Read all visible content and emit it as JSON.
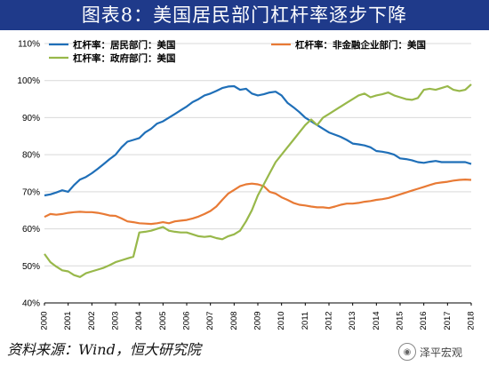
{
  "title": "图表8：美国居民部门杠杆率逐步下降",
  "source": "资料来源：Wind，恒大研究院",
  "watermark": "泽平宏观",
  "colors": {
    "household": "#1f6fb8",
    "nonfin": "#e87a35",
    "gov": "#98b84a"
  },
  "chart_data": {
    "type": "line",
    "title": "图表8：美国居民部门杠杆率逐步下降",
    "xlabel": "",
    "ylabel": "",
    "ylim": [
      40,
      110
    ],
    "y_ticks": [
      "40%",
      "50%",
      "60%",
      "70%",
      "80%",
      "90%",
      "100%",
      "110%"
    ],
    "x_ticks": [
      "2000",
      "2001",
      "2002",
      "2003",
      "2004",
      "2005",
      "2006",
      "2007",
      "2008",
      "2009",
      "2010",
      "2011",
      "2012",
      "2013",
      "2014",
      "2015",
      "2016",
      "2017",
      "2018"
    ],
    "grid": true,
    "legend": "top",
    "x": [
      2000.0,
      2000.25,
      2000.5,
      2000.75,
      2001.0,
      2001.25,
      2001.5,
      2001.75,
      2002.0,
      2002.25,
      2002.5,
      2002.75,
      2003.0,
      2003.25,
      2003.5,
      2003.75,
      2004.0,
      2004.25,
      2004.5,
      2004.75,
      2005.0,
      2005.25,
      2005.5,
      2005.75,
      2006.0,
      2006.25,
      2006.5,
      2006.75,
      2007.0,
      2007.25,
      2007.5,
      2007.75,
      2008.0,
      2008.25,
      2008.5,
      2008.75,
      2009.0,
      2009.25,
      2009.5,
      2009.75,
      2010.0,
      2010.25,
      2010.5,
      2010.75,
      2011.0,
      2011.25,
      2011.5,
      2011.75,
      2012.0,
      2012.25,
      2012.5,
      2012.75,
      2013.0,
      2013.25,
      2013.5,
      2013.75,
      2014.0,
      2014.25,
      2014.5,
      2014.75,
      2015.0,
      2015.25,
      2015.5,
      2015.75,
      2016.0,
      2016.25,
      2016.5,
      2016.75,
      2017.0,
      2017.25,
      2017.5,
      2017.75,
      2018.0
    ],
    "series": [
      {
        "name": "杠杆率：居民部门：美国",
        "color": "#1f6fb8",
        "values": [
          69.0,
          69.3,
          69.8,
          70.4,
          70.0,
          71.8,
          73.3,
          74.0,
          75.0,
          76.2,
          77.5,
          78.8,
          80.0,
          82.0,
          83.5,
          84.0,
          84.5,
          86.0,
          87.0,
          88.4,
          89.0,
          90.0,
          91.0,
          92.0,
          93.0,
          94.2,
          95.0,
          96.0,
          96.5,
          97.2,
          98.0,
          98.4,
          98.5,
          97.5,
          97.8,
          96.5,
          96.0,
          96.3,
          96.8,
          97.0,
          96.0,
          94.0,
          92.8,
          91.5,
          90.0,
          89.0,
          88.0,
          87.0,
          86.0,
          85.4,
          84.8,
          84.0,
          83.0,
          82.8,
          82.5,
          82.0,
          81.0,
          80.8,
          80.5,
          80.0,
          79.0,
          78.8,
          78.5,
          78.0,
          77.8,
          78.1,
          78.3,
          78.0,
          78.0,
          78.0,
          78.0,
          78.0,
          77.5
        ]
      },
      {
        "name": "杠杆率：非金融企业部门：美国",
        "color": "#e87a35",
        "values": [
          63.2,
          64.0,
          63.8,
          64.0,
          64.3,
          64.5,
          64.6,
          64.5,
          64.5,
          64.3,
          64.0,
          63.6,
          63.5,
          62.8,
          62.0,
          61.8,
          61.5,
          61.4,
          61.3,
          61.5,
          61.8,
          61.5,
          62.0,
          62.2,
          62.4,
          62.8,
          63.3,
          64.0,
          64.8,
          66.0,
          67.8,
          69.5,
          70.5,
          71.5,
          72.0,
          72.2,
          72.0,
          71.5,
          70.0,
          69.5,
          68.5,
          67.8,
          67.0,
          66.5,
          66.3,
          66.0,
          65.8,
          65.8,
          65.6,
          66.0,
          66.5,
          66.8,
          66.8,
          67.0,
          67.3,
          67.5,
          67.8,
          68.0,
          68.3,
          68.8,
          69.3,
          69.8,
          70.3,
          70.8,
          71.3,
          71.8,
          72.3,
          72.5,
          72.7,
          73.0,
          73.2,
          73.3,
          73.2
        ]
      },
      {
        "name": "杠杆率：政府部门：美国",
        "color": "#98b84a",
        "values": [
          53.2,
          51.0,
          49.8,
          48.8,
          48.5,
          47.5,
          47.0,
          48.0,
          48.5,
          49.0,
          49.5,
          50.2,
          51.0,
          51.5,
          52.0,
          52.5,
          59.0,
          59.2,
          59.5,
          60.0,
          60.5,
          59.5,
          59.2,
          59.0,
          59.0,
          58.5,
          58.0,
          57.8,
          58.0,
          57.5,
          57.2,
          58.0,
          58.5,
          59.5,
          62.0,
          65.0,
          69.0,
          72.0,
          75.0,
          78.0,
          80.0,
          82.0,
          84.0,
          86.0,
          88.0,
          89.5,
          88.0,
          90.0,
          91.0,
          92.0,
          93.0,
          94.0,
          95.0,
          96.0,
          96.5,
          95.5,
          96.0,
          96.3,
          96.8,
          96.0,
          95.5,
          95.0,
          94.8,
          95.3,
          97.5,
          97.8,
          97.5,
          98.0,
          98.5,
          97.5,
          97.2,
          97.5,
          99.0
        ]
      }
    ]
  }
}
